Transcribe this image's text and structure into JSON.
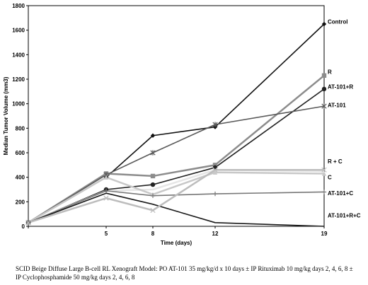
{
  "chart_data": {
    "type": "line",
    "xlabel": "Time (days)",
    "ylabel": "Median Tumor Volume (mm3)",
    "x": [
      0,
      5,
      8,
      12,
      19
    ],
    "x_tick_labels": [
      "",
      "5",
      "8",
      "12",
      "19"
    ],
    "ylim": [
      0,
      1800
    ],
    "y_ticks": [
      0,
      200,
      400,
      600,
      800,
      1000,
      1200,
      1400,
      1600,
      1800
    ],
    "grid": false,
    "series": [
      {
        "name": "Control",
        "color": "#111111",
        "marker": "diamond",
        "values": [
          30,
          400,
          740,
          810,
          1650
        ]
      },
      {
        "name": "R",
        "color": "#8c8c8c",
        "marker": "square",
        "values": [
          30,
          430,
          410,
          500,
          1230
        ]
      },
      {
        "name": "AT-101+R",
        "color": "#222222",
        "marker": "circle",
        "values": [
          30,
          300,
          340,
          480,
          1120
        ]
      },
      {
        "name": "AT-101",
        "color": "#5a5a5a",
        "marker": "star",
        "values": [
          30,
          420,
          600,
          830,
          980
        ]
      },
      {
        "name": "R + C",
        "color": "#e6e6e6",
        "marker": "none",
        "values": [
          30,
          290,
          300,
          460,
          450
        ]
      },
      {
        "name": "C",
        "color": "#c8c8c8",
        "marker": "triangle",
        "values": [
          30,
          400,
          260,
          440,
          430
        ]
      },
      {
        "name": "AT-101+C",
        "color": "#777777",
        "marker": "plus",
        "values": [
          30,
          290,
          250,
          265,
          280
        ]
      },
      {
        "name": "AT-101+R+C",
        "color": "#1a1a1a",
        "marker": "none",
        "values": [
          30,
          270,
          180,
          30,
          0
        ]
      },
      {
        "name": "",
        "color": "#bdbdbd",
        "marker": "x",
        "values": [
          30,
          230,
          130,
          460,
          460
        ]
      }
    ]
  },
  "caption": "SCID Beige Diffuse Large B-cell RL Xenograft Model: PO AT-101 35 mg/kg/d x 10 days ± IP Rituximab 10 mg/kg days 2, 4, 6, 8 ± IP Cyclophosphamide 50 mg/kg days 2, 4, 6, 8"
}
